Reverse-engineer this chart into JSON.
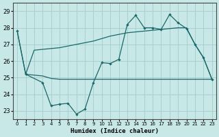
{
  "xlabel": "Humidex (Indice chaleur)",
  "background_color": "#c8e8e8",
  "grid_color": "#a8d0d0",
  "line_color": "#1a6868",
  "x_data": [
    0,
    1,
    2,
    3,
    4,
    5,
    6,
    7,
    8,
    9,
    10,
    11,
    12,
    13,
    14,
    15,
    16,
    17,
    18,
    19,
    20,
    21,
    22,
    23
  ],
  "line_upper": [
    27.8,
    25.2,
    26.65,
    26.7,
    26.75,
    26.8,
    26.9,
    27.0,
    27.1,
    27.2,
    27.35,
    27.5,
    27.6,
    27.7,
    27.75,
    27.8,
    27.85,
    27.9,
    27.95,
    28.0,
    28.0,
    27.0,
    26.2,
    24.9
  ],
  "line_lower": [
    null,
    null,
    null,
    null,
    null,
    null,
    null,
    null,
    null,
    null,
    null,
    null,
    null,
    null,
    null,
    null,
    null,
    null,
    null,
    null,
    null,
    null,
    null,
    null
  ],
  "jagged_x": [
    0,
    1,
    3,
    4,
    5,
    6,
    7,
    8,
    9,
    10,
    11,
    12,
    13,
    14,
    15,
    16,
    17,
    18,
    19,
    20,
    21,
    22,
    23
  ],
  "jagged_y": [
    27.8,
    25.2,
    24.7,
    23.3,
    23.4,
    23.45,
    22.8,
    23.1,
    24.7,
    25.9,
    25.85,
    26.1,
    28.2,
    28.75,
    28.0,
    28.0,
    27.9,
    28.8,
    28.3,
    27.95,
    27.0,
    26.2,
    24.9
  ],
  "flat_x": [
    1,
    2,
    3,
    4,
    5,
    6,
    7,
    8,
    9,
    10,
    11,
    12,
    13,
    14,
    15,
    16,
    17,
    18,
    19,
    20,
    21,
    22,
    23
  ],
  "flat_y": [
    25.2,
    25.15,
    25.1,
    24.95,
    24.9,
    24.9,
    24.9,
    24.9,
    24.9,
    24.9,
    24.9,
    24.9,
    24.9,
    24.9,
    24.9,
    24.9,
    24.9,
    24.9,
    24.9,
    24.9,
    24.9,
    24.9,
    24.9
  ],
  "ylim": [
    22.5,
    29.5
  ],
  "yticks": [
    23,
    24,
    25,
    26,
    27,
    28,
    29
  ],
  "xticks": [
    0,
    1,
    2,
    3,
    4,
    5,
    6,
    7,
    8,
    9,
    10,
    11,
    12,
    13,
    14,
    15,
    16,
    17,
    18,
    19,
    20,
    21,
    22,
    23
  ]
}
